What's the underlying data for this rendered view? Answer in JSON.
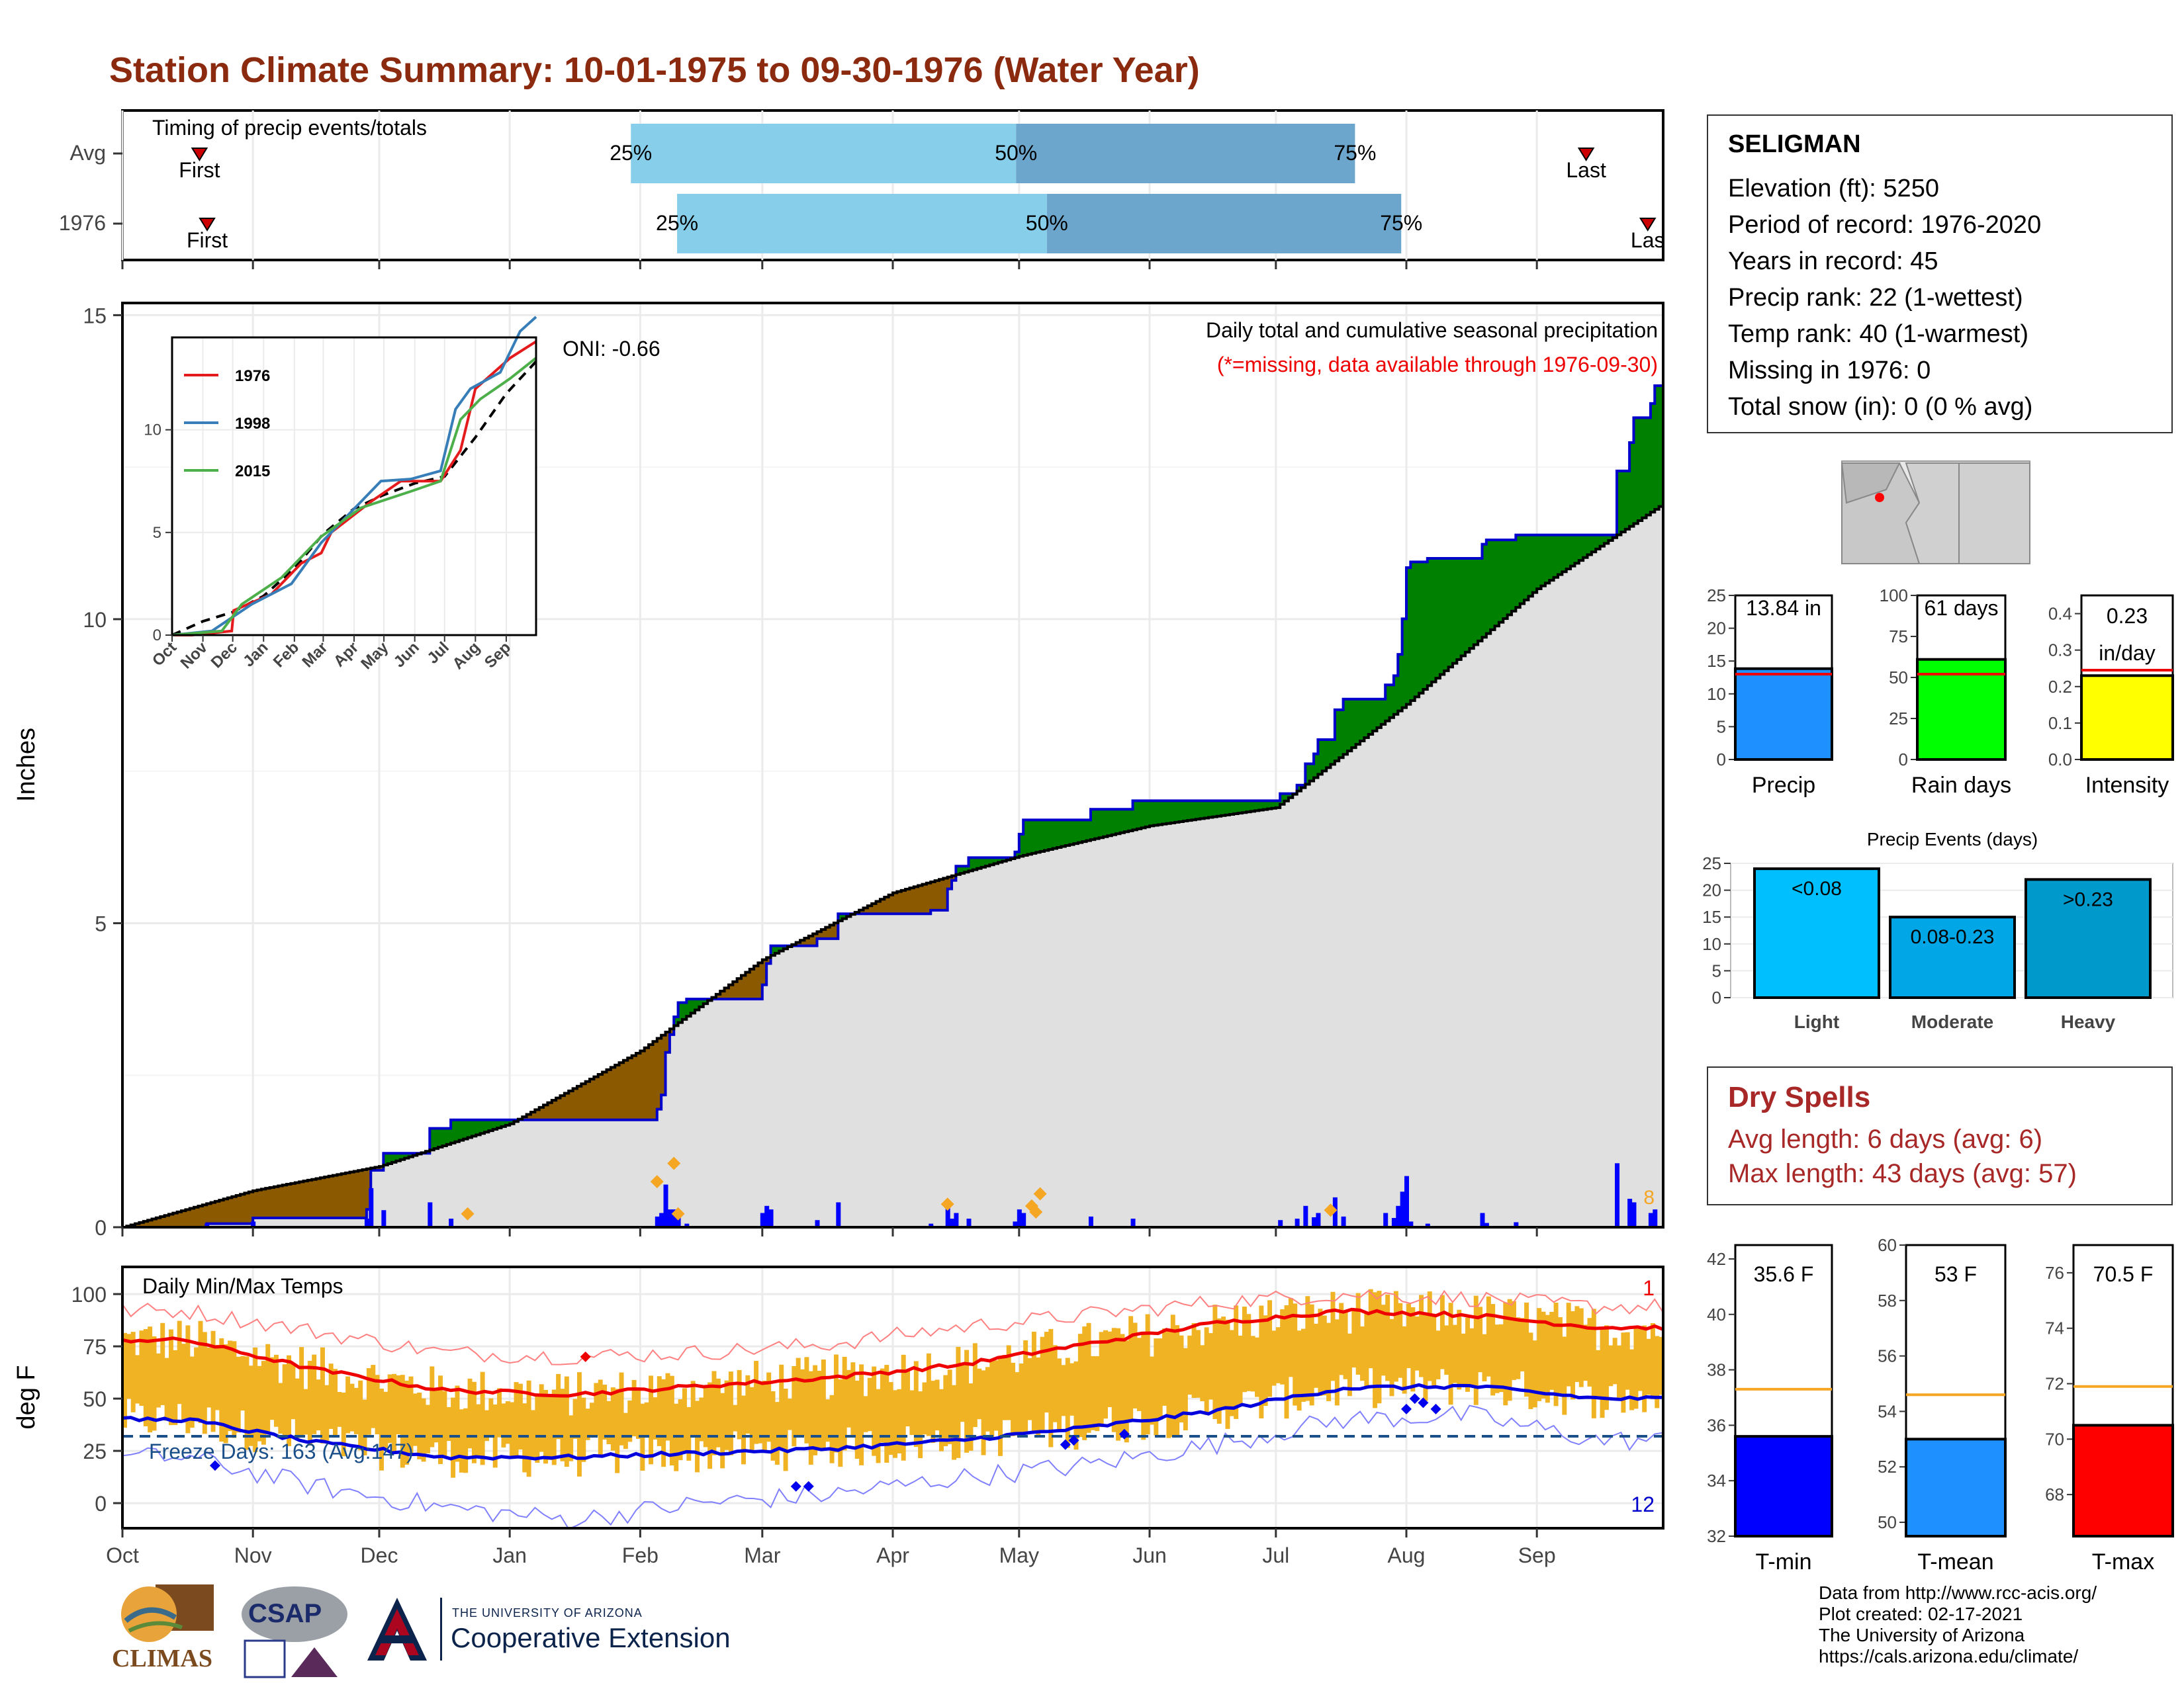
{
  "title": "Station Climate Summary: 10-01-1975 to 09-30-1976 (Water Year)",
  "timing": {
    "label": "Timing of precip events/totals",
    "rows": [
      {
        "name": "Avg",
        "first": "First",
        "last": "Last",
        "p25": "25%",
        "p50": "50%",
        "p75": "75%",
        "first_frac": 0.05,
        "p25_frac": 0.33,
        "p50_frac": 0.58,
        "p75_frac": 0.8,
        "last_frac": 0.95
      },
      {
        "name": "1976",
        "first": "First",
        "last": "Las",
        "p25": "25%",
        "p50": "50%",
        "p75": "75%",
        "first_frac": 0.055,
        "p25_frac": 0.36,
        "p50_frac": 0.6,
        "p75_frac": 0.83,
        "last_frac": 0.99
      }
    ]
  },
  "station": {
    "name": "SELIGMAN",
    "lines": [
      "Elevation (ft): 5250",
      "Period of record: 1976-2020",
      "Years in record: 45",
      "Precip rank: 22 (1-wettest)",
      "Temp rank: 40 (1-warmest)",
      "Missing in 1976: 0",
      "Total snow (in): 0 (0 % avg)"
    ]
  },
  "precip_panel": {
    "ylabel": "Inches",
    "yticks": [
      "0",
      "5",
      "10",
      "15"
    ],
    "note1": "Daily total and cumulative seasonal precipitation",
    "note2": "(*=missing, data available through 1976-09-30)",
    "oni": "ONI: -0.66",
    "corner_label": "8",
    "colors": {
      "above": "#008000",
      "below": "#8b5a00",
      "fill": "#e0e0e0",
      "obs": "#0000cc",
      "avg": "#000000"
    }
  },
  "inset": {
    "yticks": [
      "0",
      "5",
      "10"
    ],
    "xticks": [
      "Oct",
      "Nov",
      "Dec",
      "Jan",
      "Feb",
      "Mar",
      "Apr",
      "May",
      "Jun",
      "Jul",
      "Aug",
      "Sep"
    ],
    "legend": [
      {
        "name": "1976",
        "color": "#e41a1c"
      },
      {
        "name": "1998",
        "color": "#377eb8"
      },
      {
        "name": "2015",
        "color": "#4daf4a"
      }
    ]
  },
  "temp_panel": {
    "label": "Daily Min/Max Temps",
    "ylabel": "deg F",
    "yticks": [
      "0",
      "25",
      "50",
      "75",
      "100"
    ],
    "freeze": "Freeze Days: 163 (Avg:147)",
    "top_count": "1",
    "bottom_count": "12"
  },
  "months": [
    "Oct",
    "Nov",
    "Dec",
    "Jan",
    "Feb",
    "Mar",
    "Apr",
    "May",
    "Jun",
    "Jul",
    "Aug",
    "Sep"
  ],
  "bars_precip": [
    {
      "label": "Precip",
      "value": "13.84 in",
      "max": 25,
      "ticks": [
        "0",
        "5",
        "10",
        "15",
        "20",
        "25"
      ],
      "val": 13.84,
      "avg": 13.0,
      "color": "#1e90ff"
    },
    {
      "label": "Rain days",
      "value": "61 days",
      "max": 100,
      "ticks": [
        "0",
        "25",
        "50",
        "75",
        "100"
      ],
      "val": 61,
      "avg": 52,
      "color": "#00ff00"
    },
    {
      "label": "Intensity",
      "value": "0.23",
      "value2": "in/day",
      "max": 0.45,
      "ticks": [
        "0.0",
        "0.1",
        "0.2",
        "0.3",
        "0.4"
      ],
      "val": 0.23,
      "avg": 0.245,
      "color": "#ffff00"
    }
  ],
  "events": {
    "title": "Precip Events (days)",
    "ticks": [
      "0",
      "5",
      "10",
      "15",
      "20",
      "25"
    ],
    "bars": [
      {
        "label": "Light",
        "value": "<0.08",
        "val": 24,
        "color": "#00bfff"
      },
      {
        "label": "Moderate",
        "value": "0.08-0.23",
        "val": 15,
        "color": "#00a6e6"
      },
      {
        "label": "Heavy",
        "value": ">0.23",
        "val": 22,
        "color": "#0099cc"
      }
    ]
  },
  "dry_spells": {
    "title": "Dry Spells",
    "avg": "Avg length: 6 days (avg: 6)",
    "max": "Max length: 43 days (avg: 57)"
  },
  "bars_temp": [
    {
      "label": "T-min",
      "value": "35.6 F",
      "min": 32,
      "max": 42.5,
      "ticks": [
        "32",
        "34",
        "36",
        "38",
        "40",
        "42"
      ],
      "val": 35.6,
      "avg": 37.3,
      "color": "#0000ff"
    },
    {
      "label": "T-mean",
      "value": "53 F",
      "min": 49.5,
      "max": 60,
      "ticks": [
        "50",
        "52",
        "54",
        "56",
        "58",
        "60"
      ],
      "val": 53.0,
      "avg": 54.6,
      "color": "#1e90ff"
    },
    {
      "label": "T-max",
      "value": "70.5 F",
      "min": 66.5,
      "max": 77,
      "ticks": [
        "68",
        "70",
        "72",
        "74",
        "76"
      ],
      "val": 70.5,
      "avg": 71.9,
      "color": "#ff0000"
    }
  ],
  "credits": [
    "Data from http://www.rcc-acis.org/",
    "Plot created: 02-17-2021",
    "The University of Arizona",
    "https://cals.arizona.edu/climate/"
  ],
  "logos": {
    "climas": "CLIMAS",
    "csap": "CSAP",
    "ua_small": "THE UNIVERSITY OF ARIZONA",
    "ua_big": "Cooperative Extension"
  },
  "chart_data": {
    "type": "area",
    "title": "Station Climate Summary: 10-01-1975 to 09-30-1976 (Water Year)",
    "ylabel": "Inches",
    "ylim": [
      0,
      15
    ],
    "x": [
      "Oct",
      "Nov",
      "Dec",
      "Jan",
      "Feb",
      "Mar",
      "Apr",
      "May",
      "Jun",
      "Jul",
      "Aug",
      "Sep"
    ],
    "series": [
      {
        "name": "1976",
        "values": [
          0,
          0.2,
          0.2,
          1.8,
          1.8,
          4.0,
          4.7,
          6.3,
          7.3,
          7.3,
          11.4,
          12.0
        ]
      },
      {
        "values": [
          0,
          0.6,
          1.0,
          1.7,
          2.9,
          4.4,
          5.5,
          6.1,
          6.6,
          6.9,
          8.6,
          10.5
        ]
      }
    ],
    "final_total": 13.84,
    "temperature": {
      "ylim": [
        -10,
        110
      ],
      "months": [
        "Oct",
        "Nov",
        "Dec",
        "Jan",
        "Feb",
        "Mar",
        "Apr",
        "May",
        "Jun",
        "Jul",
        "Aug",
        "Sep"
      ],
      "avg_max": [
        78,
        64,
        54,
        52,
        56,
        60,
        66,
        76,
        86,
        92,
        90,
        84
      ],
      "avg_min": [
        40,
        29,
        22,
        22,
        24,
        26,
        30,
        36,
        44,
        55,
        56,
        50
      ],
      "record_max": [
        92,
        82,
        72,
        70,
        72,
        76,
        84,
        90,
        96,
        100,
        98,
        94
      ],
      "record_min": [
        22,
        8,
        -2,
        -8,
        0,
        4,
        12,
        18,
        28,
        40,
        42,
        30
      ],
      "freeze_line": 32
    }
  }
}
